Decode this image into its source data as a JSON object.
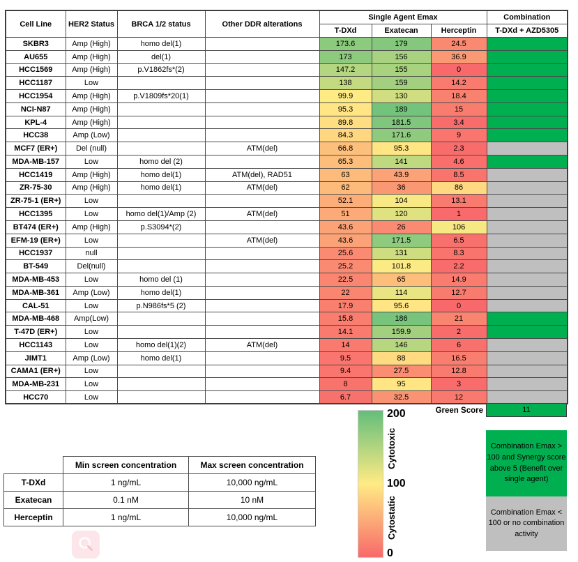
{
  "colors": {
    "combination_green": "#00B050",
    "combination_gray": "#BFBFBF",
    "scale_low": "#F8696B",
    "scale_mid": "#FFEB84",
    "scale_high": "#63BE7B"
  },
  "main_table": {
    "headers": {
      "cell_line": "Cell Line",
      "her2": "HER2 Status",
      "brca": "BRCA 1/2 status",
      "ddr": "Other DDR alterations",
      "emax_group": "Single Agent Emax",
      "tdxd": "T-DXd",
      "exatecan": "Exatecan",
      "herceptin": "Herceptin",
      "combination_group": "Combination",
      "combination": "T-DXd + AZD5305"
    }
  },
  "chart_data": {
    "type": "heatmap",
    "columns": [
      "T-DXd",
      "Exatecan",
      "Herceptin"
    ],
    "color_scale": {
      "min": 0,
      "mid": 100,
      "max": 200,
      "min_color": "#F8696B",
      "mid_color": "#FFEB84",
      "max_color": "#63BE7B"
    },
    "combination_states": {
      "green": "#00B050",
      "gray": "#BFBFBF"
    },
    "rows": [
      {
        "cell_line": "SKBR3",
        "her2": "Amp (High)",
        "brca": "homo del(1)",
        "ddr": "",
        "values": [
          "173.6",
          "179",
          "24.5"
        ],
        "combination": "green"
      },
      {
        "cell_line": "AU655",
        "her2": "Amp (High)",
        "brca": "del(1)",
        "ddr": "",
        "values": [
          "173",
          "156",
          "36.9"
        ],
        "combination": "green"
      },
      {
        "cell_line": "HCC1569",
        "her2": "Amp (High)",
        "brca": "p.V1862fs*(2)",
        "ddr": "",
        "values": [
          "147.2",
          "155",
          "0"
        ],
        "combination": "green"
      },
      {
        "cell_line": "HCC1187",
        "her2": "Low",
        "brca": "",
        "ddr": "",
        "values": [
          "138",
          "159",
          "14.2"
        ],
        "combination": "green"
      },
      {
        "cell_line": "HCC1954",
        "her2": "Amp (High)",
        "brca": "p.V1809fs*20(1)",
        "ddr": "",
        "values": [
          "99.9",
          "130",
          "18.4"
        ],
        "combination": "green"
      },
      {
        "cell_line": "NCI-N87",
        "her2": "Amp (High)",
        "brca": "",
        "ddr": "",
        "values": [
          "95.3",
          "189",
          "15"
        ],
        "combination": "green"
      },
      {
        "cell_line": "KPL-4",
        "her2": "Amp (High)",
        "brca": "",
        "ddr": "",
        "values": [
          "89.8",
          "181.5",
          "3.4"
        ],
        "combination": "green"
      },
      {
        "cell_line": "HCC38",
        "her2": "Amp (Low)",
        "brca": "",
        "ddr": "",
        "values": [
          "84.3",
          "171.6",
          "9"
        ],
        "combination": "green"
      },
      {
        "cell_line": "MCF7 (ER+)",
        "her2": "Del (null)",
        "brca": "",
        "ddr": "ATM(del)",
        "values": [
          "66.8",
          "95.3",
          "2.3"
        ],
        "combination": "gray"
      },
      {
        "cell_line": "MDA-MB-157",
        "her2": "Low",
        "brca": "homo del (2)",
        "ddr": "",
        "values": [
          "65.3",
          "141",
          "4.6"
        ],
        "combination": "green"
      },
      {
        "cell_line": "HCC1419",
        "her2": "Amp (High)",
        "brca": "homo del(1)",
        "ddr": "ATM(del), RAD51",
        "values": [
          "63",
          "43.9",
          "8.5"
        ],
        "combination": "gray"
      },
      {
        "cell_line": "ZR-75-30",
        "her2": "Amp (High)",
        "brca": "homo del(1)",
        "ddr": "ATM(del)",
        "values": [
          "62",
          "36",
          "86"
        ],
        "combination": "gray"
      },
      {
        "cell_line": "ZR-75-1 (ER+)",
        "her2": "Low",
        "brca": "",
        "ddr": "",
        "values": [
          "52.1",
          "104",
          "13.1"
        ],
        "combination": "gray"
      },
      {
        "cell_line": "HCC1395",
        "her2": "Low",
        "brca": "homo del(1)/Amp (2)",
        "ddr": "ATM(del)",
        "values": [
          "51",
          "120",
          "1"
        ],
        "combination": "gray"
      },
      {
        "cell_line": "BT474 (ER+)",
        "her2": "Amp (High)",
        "brca": "p.S3094*(2)",
        "ddr": "",
        "values": [
          "43.6",
          "26",
          "106"
        ],
        "combination": "gray"
      },
      {
        "cell_line": "EFM-19 (ER+)",
        "her2": "Low",
        "brca": "",
        "ddr": "ATM(del)",
        "values": [
          "43.6",
          "171.5",
          "6.5"
        ],
        "combination": "gray"
      },
      {
        "cell_line": "HCC1937",
        "her2": "null",
        "brca": "",
        "ddr": "",
        "values": [
          "25.6",
          "131",
          "8.3"
        ],
        "combination": "gray"
      },
      {
        "cell_line": "BT-549",
        "her2": "Del(null)",
        "brca": "",
        "ddr": "",
        "values": [
          "25.2",
          "101.8",
          "2.2"
        ],
        "combination": "gray"
      },
      {
        "cell_line": "MDA-MB-453",
        "her2": "Low",
        "brca": "homo del (1)",
        "ddr": "",
        "values": [
          "22.5",
          "65",
          "14.9"
        ],
        "combination": "gray"
      },
      {
        "cell_line": "MDA-MB-361",
        "her2": "Amp (Low)",
        "brca": "homo del(1)",
        "ddr": "",
        "values": [
          "22",
          "114",
          "12.7"
        ],
        "combination": "gray"
      },
      {
        "cell_line": "CAL-51",
        "her2": "Low",
        "brca": "p.N986fs*5 (2)",
        "ddr": "",
        "values": [
          "17.9",
          "95.6",
          "0"
        ],
        "combination": "gray"
      },
      {
        "cell_line": "MDA-MB-468",
        "her2": "Amp(Low)",
        "brca": "",
        "ddr": "",
        "values": [
          "15.8",
          "186",
          "21"
        ],
        "combination": "green"
      },
      {
        "cell_line": "T-47D (ER+)",
        "her2": "Low",
        "brca": "",
        "ddr": "",
        "values": [
          "14.1",
          "159.9",
          "2"
        ],
        "combination": "green"
      },
      {
        "cell_line": "HCC1143",
        "her2": "Low",
        "brca": "homo del(1)(2)",
        "ddr": "ATM(del)",
        "values": [
          "14",
          "146",
          "6"
        ],
        "combination": "gray"
      },
      {
        "cell_line": "JIMT1",
        "her2": "Amp (Low)",
        "brca": "homo del(1)",
        "ddr": "",
        "values": [
          "9.5",
          "88",
          "16.5"
        ],
        "combination": "gray"
      },
      {
        "cell_line": "CAMA1 (ER+)",
        "her2": "Low",
        "brca": "",
        "ddr": "",
        "values": [
          "9.4",
          "27.5",
          "12.8"
        ],
        "combination": "gray"
      },
      {
        "cell_line": "MDA-MB-231",
        "her2": "Low",
        "brca": "",
        "ddr": "",
        "values": [
          "8",
          "95",
          "3"
        ],
        "combination": "gray"
      },
      {
        "cell_line": "HCC70",
        "her2": "Low",
        "brca": "",
        "ddr": "",
        "values": [
          "6.7",
          "32.5",
          "12"
        ],
        "combination": "gray"
      }
    ]
  },
  "green_score": {
    "label": "Green Score",
    "value": "11"
  },
  "scale_legend": {
    "max_label": "200",
    "mid_label": "100",
    "min_label": "0",
    "upper_text": "Cytotoxic",
    "lower_text": "Cytostatic"
  },
  "combination_legend": {
    "green_text": "Combination Emax > 100 and Synergy score above 5 (Benefit over single agent)",
    "gray_text": "Combination Emax < 100 or no combination activity"
  },
  "concentration_table": {
    "col_headers": [
      "Min screen concentration",
      "Max screen concentration"
    ],
    "rows": [
      {
        "label": "T-DXd",
        "min": "1 ng/mL",
        "max": "10,000 ng/mL"
      },
      {
        "label": "Exatecan",
        "min": "0.1 nM",
        "max": "10 nM"
      },
      {
        "label": "Herceptin",
        "min": "1 ng/mL",
        "max": "10,000 ng/mL"
      }
    ]
  }
}
